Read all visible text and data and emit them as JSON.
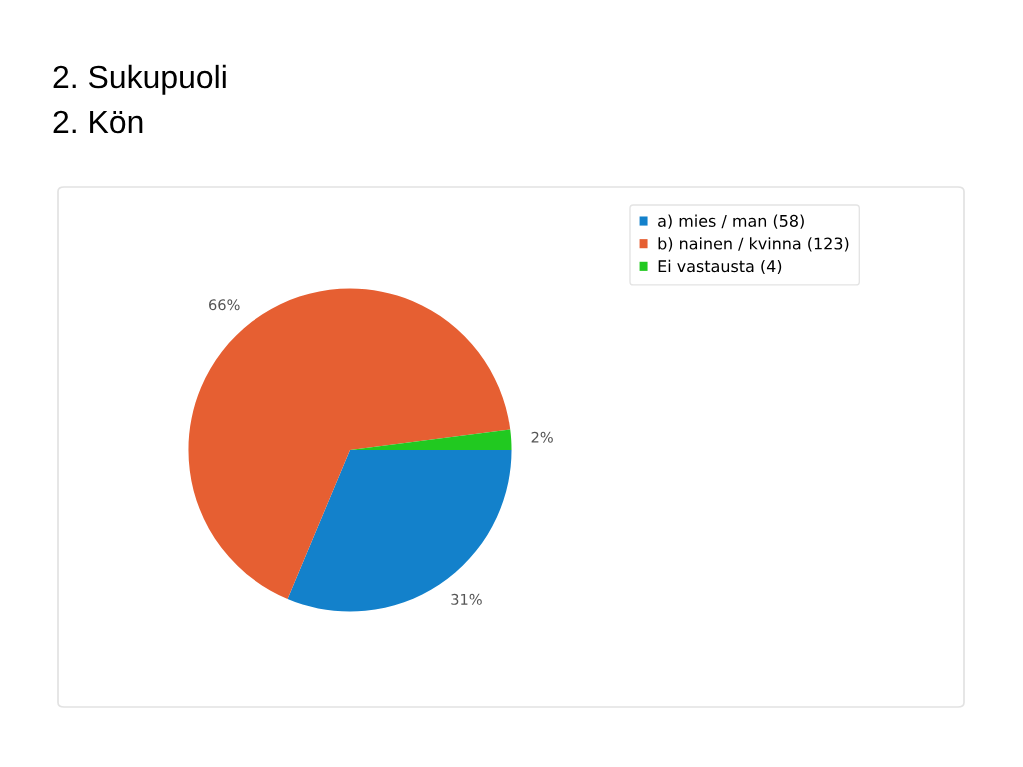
{
  "chart_data": {
    "type": "pie",
    "title": "2. Sukupuoli",
    "subtitle": "2. Kön",
    "categories": [
      "a) mies / man (58)",
      "b) nainen / kvinna (123)",
      "Ei vastausta (4)"
    ],
    "values": [
      31,
      66,
      2
    ],
    "colors": [
      "#1381cb",
      "#e65f32",
      "#21c920"
    ],
    "value_labels": [
      "31%",
      "66%",
      "2%"
    ],
    "legend": "top right"
  }
}
